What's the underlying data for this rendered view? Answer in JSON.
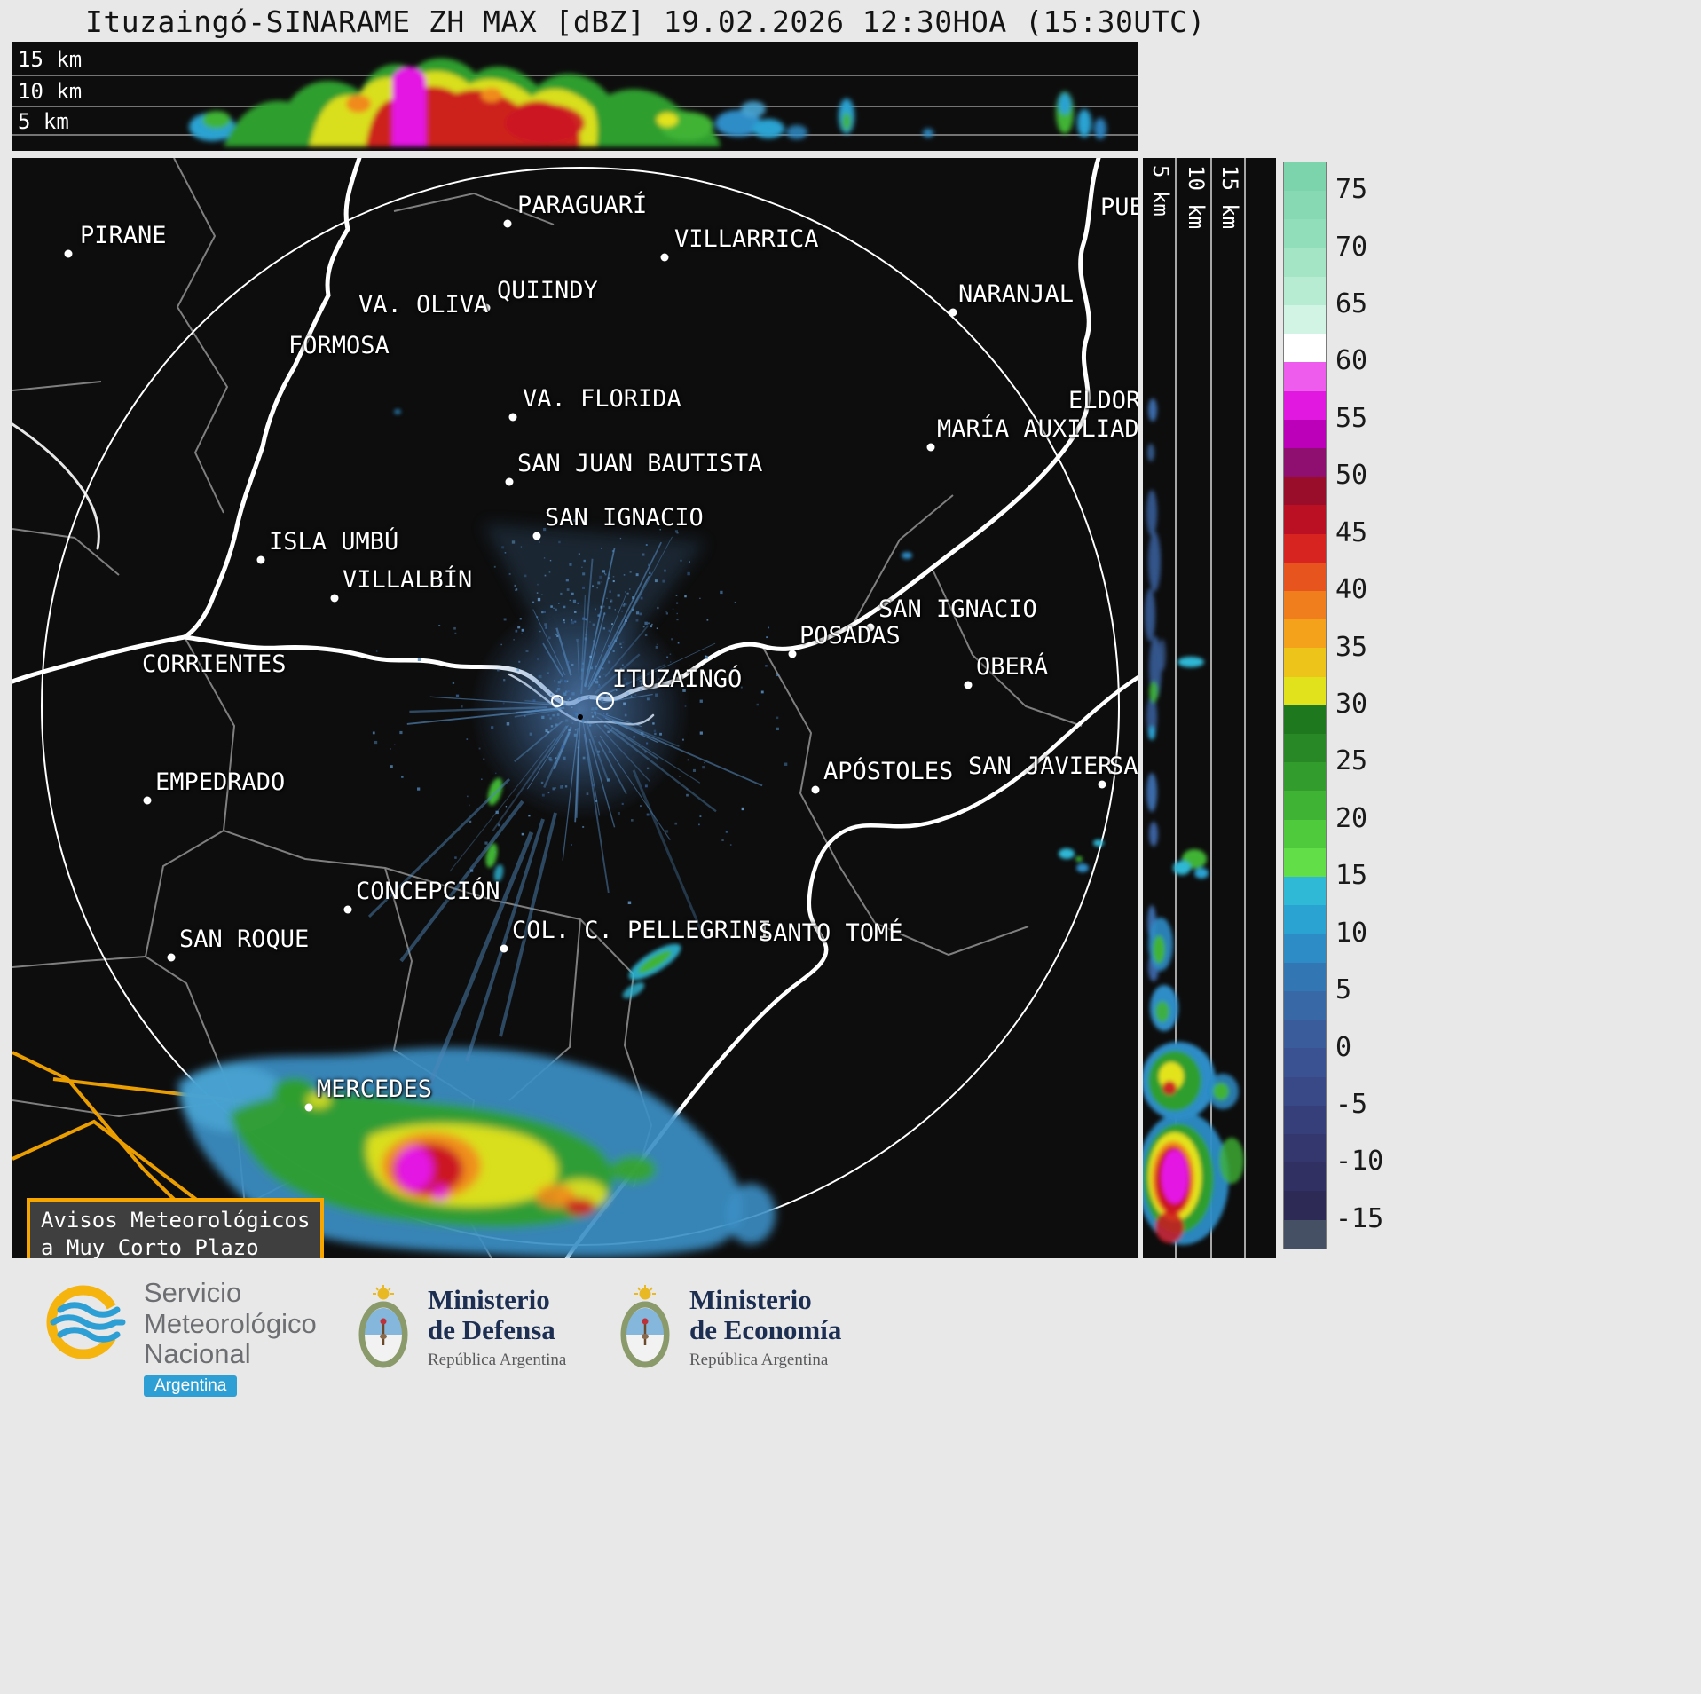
{
  "title": "Ituzaingó-SINARAME ZH MAX [dBZ] 19.02.2026 12:30HOA (15:30UTC)",
  "top_panel": {
    "altitude_labels": [
      "15 km",
      "10 km",
      "5 km"
    ]
  },
  "side_panel": {
    "altitude_labels": [
      "5 km",
      "10 km",
      "15 km"
    ]
  },
  "map": {
    "radar_name": "ITUZAINGÓ",
    "warning_box": {
      "line1": "Avisos Meteorológicos",
      "line2": "a Muy Corto Plazo"
    },
    "cities": [
      {
        "name": "PIRANE",
        "dot": [
          63,
          108
        ],
        "label": [
          76,
          72
        ]
      },
      {
        "name": "PARAGUARÍ",
        "dot": [
          558,
          74
        ],
        "label": [
          569,
          38
        ]
      },
      {
        "name": "VILLARRICA",
        "dot": [
          735,
          112
        ],
        "label": [
          746,
          76
        ]
      },
      {
        "name": "QUIINDY",
        "dot": null,
        "label": [
          546,
          134
        ]
      },
      {
        "name": "VA. OLIVA",
        "dot": [
          534,
          169
        ],
        "label": [
          390,
          150
        ]
      },
      {
        "name": "FORMOSA",
        "dot": null,
        "label": [
          311,
          196
        ]
      },
      {
        "name": "NARANJAL",
        "dot": [
          1060,
          174
        ],
        "label": [
          1066,
          138
        ]
      },
      {
        "name": "VA. FLORIDA",
        "dot": [
          564,
          292
        ],
        "label": [
          575,
          256
        ]
      },
      {
        "name": "ELDORADO",
        "dot": null,
        "label": [
          1190,
          258
        ]
      },
      {
        "name": "MARÍA AUXILIADORA",
        "dot": [
          1035,
          326
        ],
        "label": [
          1042,
          290
        ]
      },
      {
        "name": "SAN JUAN BAUTISTA",
        "dot": [
          560,
          365
        ],
        "label": [
          569,
          329
        ]
      },
      {
        "name": "SAN IGNACIO",
        "dot": [
          591,
          426
        ],
        "label": [
          600,
          390
        ]
      },
      {
        "name": "ISLA UMBÚ",
        "dot": [
          280,
          453
        ],
        "label": [
          289,
          417
        ]
      },
      {
        "name": "VILLALBÍN",
        "dot": [
          363,
          496
        ],
        "label": [
          372,
          460
        ]
      },
      {
        "name": "SAN IGNACIO",
        "dot": [
          967,
          529
        ],
        "label": [
          976,
          493
        ]
      },
      {
        "name": "POSADAS",
        "dot": [
          879,
          559
        ],
        "label": [
          887,
          523
        ]
      },
      {
        "name": "OBERÁ",
        "dot": [
          1077,
          594
        ],
        "label": [
          1086,
          558
        ]
      },
      {
        "name": "CORRIENTES",
        "dot": null,
        "label": [
          146,
          555
        ]
      },
      {
        "name": "ITUZAINGÓ",
        "dot": null,
        "label": [
          676,
          572
        ]
      },
      {
        "name": "EMPEDRADO",
        "dot": [
          152,
          724
        ],
        "label": [
          161,
          688
        ]
      },
      {
        "name": "APÓSTOLES",
        "dot": [
          905,
          712
        ],
        "label": [
          914,
          676
        ]
      },
      {
        "name": "SAN JAVIER",
        "dot": [
          1228,
          706
        ],
        "label": [
          1077,
          670
        ]
      },
      {
        "name": "SAN",
        "dot": null,
        "label": [
          1236,
          670
        ]
      },
      {
        "name": "PUE",
        "dot": null,
        "label": [
          1226,
          40
        ]
      },
      {
        "name": "CONCEPCIÓN",
        "dot": [
          378,
          847
        ],
        "label": [
          387,
          811
        ]
      },
      {
        "name": "COL. C. PELLEGRINI",
        "dot": [
          554,
          891
        ],
        "label": [
          563,
          855
        ]
      },
      {
        "name": "SANTO TOMÉ",
        "dot": null,
        "label": [
          841,
          858
        ]
      },
      {
        "name": "SAN ROQUE",
        "dot": [
          179,
          901
        ],
        "label": [
          188,
          865
        ]
      },
      {
        "name": "MERCEDES",
        "dot": [
          334,
          1070
        ],
        "label": [
          343,
          1034
        ]
      }
    ]
  },
  "colorbar": {
    "ticks": [
      75,
      70,
      65,
      60,
      55,
      50,
      45,
      40,
      35,
      30,
      25,
      20,
      15,
      10,
      5,
      0,
      -5,
      -10,
      -15
    ],
    "tick_top_value": 77.5,
    "tick_bottom_value": -17.5,
    "segments": [
      "#7bd4ab",
      "#86d9b3",
      "#90deba",
      "#a4e5c6",
      "#b8ecd2",
      "#d2f4e4",
      "#ffffff",
      "#ee5cee",
      "#e018e0",
      "#bc00ba",
      "#8f0f70",
      "#990d2a",
      "#bb1024",
      "#d82420",
      "#e8541d",
      "#f07e1c",
      "#f4a11b",
      "#edc51a",
      "#e2e21c",
      "#1e781e",
      "#288826",
      "#329c2c",
      "#3fb334",
      "#4fca3c",
      "#62de48",
      "#30b9d6",
      "#2aa2d2",
      "#2d8cc6",
      "#3376b4",
      "#3868a6",
      "#3b5c9a",
      "#3b5292",
      "#394886",
      "#373f7a",
      "#34366e",
      "#313062",
      "#2d2a56",
      "#465064"
    ]
  },
  "footer": {
    "smn": {
      "name_lines": [
        "Servicio",
        "Meteorológico",
        "Nacional"
      ],
      "country_badge": "Argentina"
    },
    "ministries": [
      {
        "name_lines": [
          "Ministerio",
          "de Defensa"
        ],
        "sub": "República Argentina"
      },
      {
        "name_lines": [
          "Ministerio",
          "de Economía"
        ],
        "sub": "República Argentina"
      }
    ]
  }
}
